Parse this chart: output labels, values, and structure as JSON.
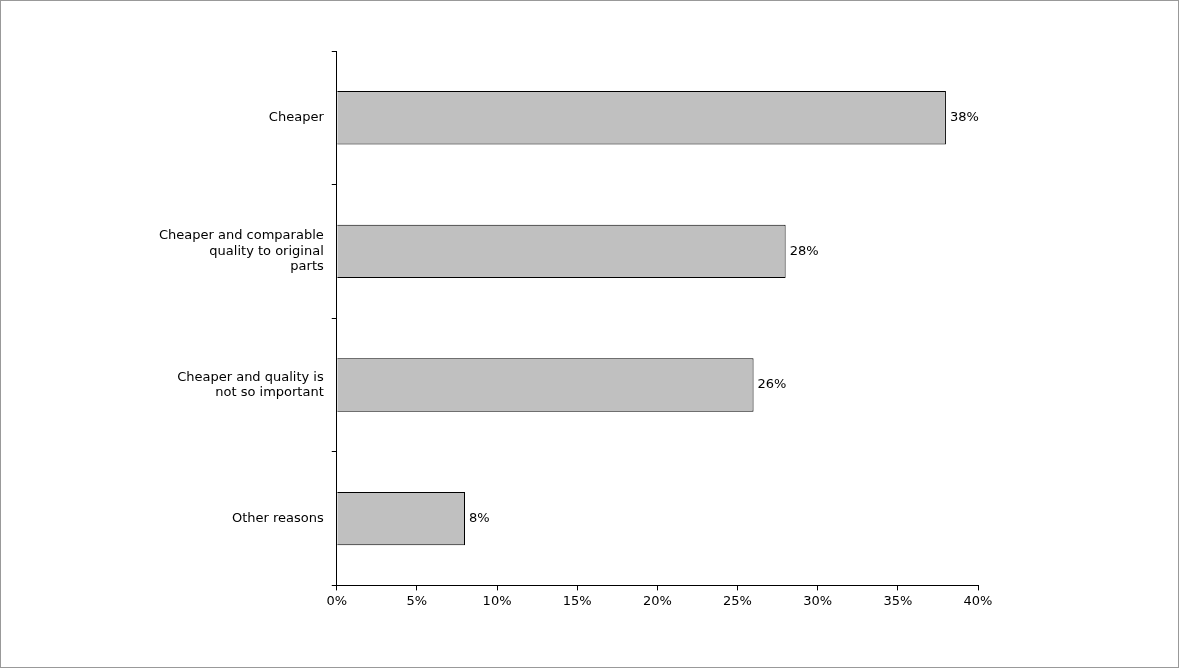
{
  "chart_data": {
    "type": "bar",
    "orientation": "horizontal",
    "categories": [
      "Cheaper",
      "Cheaper and comparable quality to original parts",
      "Cheaper and quality is not so important",
      "Other reasons"
    ],
    "values": [
      38,
      28,
      26,
      8
    ],
    "value_labels": [
      "38%",
      "28%",
      "26%",
      "8%"
    ],
    "color": "#c0c0c0",
    "xlim": [
      0,
      40
    ],
    "xticks": [
      {
        "value": 0,
        "label": "0%"
      },
      {
        "value": 5,
        "label": "5%"
      },
      {
        "value": 10,
        "label": "10%"
      },
      {
        "value": 15,
        "label": "15%"
      },
      {
        "value": 20,
        "label": "20%"
      },
      {
        "value": 25,
        "label": "25%"
      },
      {
        "value": 30,
        "label": "30%"
      },
      {
        "value": 35,
        "label": "35%"
      },
      {
        "value": 40,
        "label": "40%"
      }
    ],
    "grid": false,
    "legend": false
  }
}
